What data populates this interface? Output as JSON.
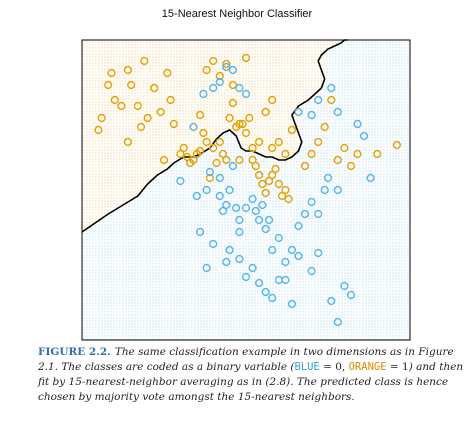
{
  "title": "15-Nearest Neighbor Classifier",
  "colors": {
    "orange": "#e69f00",
    "blue": "#56b4e9",
    "boundary": "#000000",
    "caption_label": "#2f6fb0"
  },
  "caption": {
    "label": "FIGURE 2.2.",
    "part1": "The same classification example in two dimensions as in Figure 2.1. The classes are coded as a binary variable (",
    "blue_code": "BLUE",
    "eq_blue": " = 0, ",
    "orange_code": "ORANGE",
    "eq_orange": " = 1",
    "part2": ") and then fit by 15-nearest-neighbor averaging as in (2.8). The predicted class is hence chosen by majority vote amongst the 15-nearest neighbors."
  },
  "chart_data": {
    "type": "scatter",
    "title": "15-Nearest Neighbor Classifier",
    "xlabel": "",
    "ylabel": "",
    "xlim": [
      0,
      100
    ],
    "ylim": [
      0,
      100
    ],
    "axes_ticks": "none",
    "grid": false,
    "legend": "none",
    "background": "dot grid colored by predicted class (orange upper-left region, blue lower-right region)",
    "decision_boundary": {
      "x": [
        0,
        4,
        8,
        11,
        14,
        17,
        20,
        23,
        26,
        28,
        31,
        34,
        36,
        39,
        41,
        43,
        45,
        47,
        48.5,
        50,
        52,
        54,
        56,
        58,
        60,
        62,
        64,
        66,
        67,
        66,
        65,
        64,
        66,
        69,
        71,
        73,
        74,
        73,
        72,
        73,
        75,
        77,
        79,
        80,
        81
      ],
      "y": [
        36,
        39,
        42,
        44,
        46,
        48,
        52,
        55,
        57,
        59,
        61,
        61,
        62,
        64,
        67,
        69,
        70,
        68,
        64,
        63,
        63,
        62,
        61,
        61,
        60,
        60,
        61,
        63,
        66,
        69,
        72,
        75,
        78,
        80,
        82,
        84,
        87,
        90,
        93,
        95,
        97,
        98,
        99,
        100,
        100
      ]
    },
    "series": [
      {
        "name": "ORANGE",
        "class": 1,
        "points": [
          [
            5,
            70
          ],
          [
            6,
            74
          ],
          [
            8,
            85
          ],
          [
            9,
            89
          ],
          [
            10,
            80
          ],
          [
            12,
            78
          ],
          [
            14,
            90
          ],
          [
            15,
            85
          ],
          [
            17,
            78
          ],
          [
            18,
            71
          ],
          [
            19,
            93
          ],
          [
            20,
            74
          ],
          [
            22,
            84
          ],
          [
            25,
            60
          ],
          [
            26,
            89
          ],
          [
            27,
            80
          ],
          [
            28,
            72
          ],
          [
            30,
            62
          ],
          [
            31,
            64
          ],
          [
            32,
            61
          ],
          [
            33,
            59
          ],
          [
            34,
            60
          ],
          [
            35,
            62
          ],
          [
            36,
            63
          ],
          [
            37,
            69
          ],
          [
            38,
            66
          ],
          [
            38,
            90
          ],
          [
            39,
            54
          ],
          [
            40,
            64
          ],
          [
            40,
            93
          ],
          [
            41,
            59
          ],
          [
            42,
            66
          ],
          [
            43,
            62
          ],
          [
            44,
            60
          ],
          [
            45,
            74
          ],
          [
            46,
            79
          ],
          [
            47,
            71
          ],
          [
            48,
            72
          ],
          [
            49,
            72
          ],
          [
            50,
            69
          ],
          [
            51,
            74
          ],
          [
            52,
            64
          ],
          [
            53,
            58
          ],
          [
            54,
            55
          ],
          [
            55,
            52
          ],
          [
            56,
            49
          ],
          [
            57,
            53
          ],
          [
            58,
            55
          ],
          [
            59,
            57
          ],
          [
            60,
            52
          ],
          [
            61,
            48
          ],
          [
            62,
            50
          ],
          [
            63,
            47
          ],
          [
            58,
            64
          ],
          [
            60,
            66
          ],
          [
            62,
            62
          ],
          [
            64,
            70
          ],
          [
            42,
            88
          ],
          [
            44,
            92
          ],
          [
            46,
            85
          ],
          [
            50,
            94
          ],
          [
            56,
            76
          ],
          [
            58,
            80
          ],
          [
            68,
            58
          ],
          [
            70,
            62
          ],
          [
            72,
            66
          ],
          [
            74,
            71
          ],
          [
            76,
            80
          ],
          [
            78,
            60
          ],
          [
            80,
            64
          ],
          [
            82,
            58
          ],
          [
            84,
            62
          ],
          [
            90,
            62
          ],
          [
            96,
            65
          ],
          [
            52,
            60
          ],
          [
            54,
            66
          ],
          [
            48,
            60
          ],
          [
            36,
            75
          ],
          [
            24,
            76
          ],
          [
            14,
            66
          ]
        ]
      },
      {
        "name": "BLUE",
        "class": 0,
        "points": [
          [
            34,
            71
          ],
          [
            37,
            82
          ],
          [
            40,
            84
          ],
          [
            42,
            86
          ],
          [
            44,
            91
          ],
          [
            46,
            90
          ],
          [
            48,
            84
          ],
          [
            50,
            82
          ],
          [
            30,
            53
          ],
          [
            35,
            48
          ],
          [
            38,
            50
          ],
          [
            39,
            56
          ],
          [
            42,
            54
          ],
          [
            42,
            48
          ],
          [
            43,
            43
          ],
          [
            44,
            45
          ],
          [
            45,
            50
          ],
          [
            47,
            44
          ],
          [
            48,
            40
          ],
          [
            50,
            44
          ],
          [
            52,
            47
          ],
          [
            53,
            43
          ],
          [
            54,
            40
          ],
          [
            55,
            45
          ],
          [
            56,
            37
          ],
          [
            57,
            40
          ],
          [
            48,
            36
          ],
          [
            45,
            30
          ],
          [
            40,
            32
          ],
          [
            36,
            36
          ],
          [
            38,
            24
          ],
          [
            44,
            26
          ],
          [
            48,
            27
          ],
          [
            50,
            21
          ],
          [
            52,
            24
          ],
          [
            54,
            19
          ],
          [
            56,
            16
          ],
          [
            58,
            14
          ],
          [
            60,
            20
          ],
          [
            62,
            26
          ],
          [
            64,
            30
          ],
          [
            66,
            38
          ],
          [
            68,
            42
          ],
          [
            70,
            46
          ],
          [
            72,
            42
          ],
          [
            74,
            50
          ],
          [
            75,
            54
          ],
          [
            78,
            50
          ],
          [
            66,
            28
          ],
          [
            70,
            23
          ],
          [
            72,
            29
          ],
          [
            76,
            13
          ],
          [
            78,
            6
          ],
          [
            80,
            18
          ],
          [
            82,
            15
          ],
          [
            70,
            75
          ],
          [
            72,
            80
          ],
          [
            76,
            84
          ],
          [
            78,
            76
          ],
          [
            84,
            72
          ],
          [
            86,
            68
          ],
          [
            88,
            54
          ],
          [
            66,
            76
          ],
          [
            62,
            20
          ],
          [
            58,
            30
          ],
          [
            46,
            58
          ],
          [
            60,
            34
          ],
          [
            64,
            12
          ]
        ]
      }
    ]
  }
}
